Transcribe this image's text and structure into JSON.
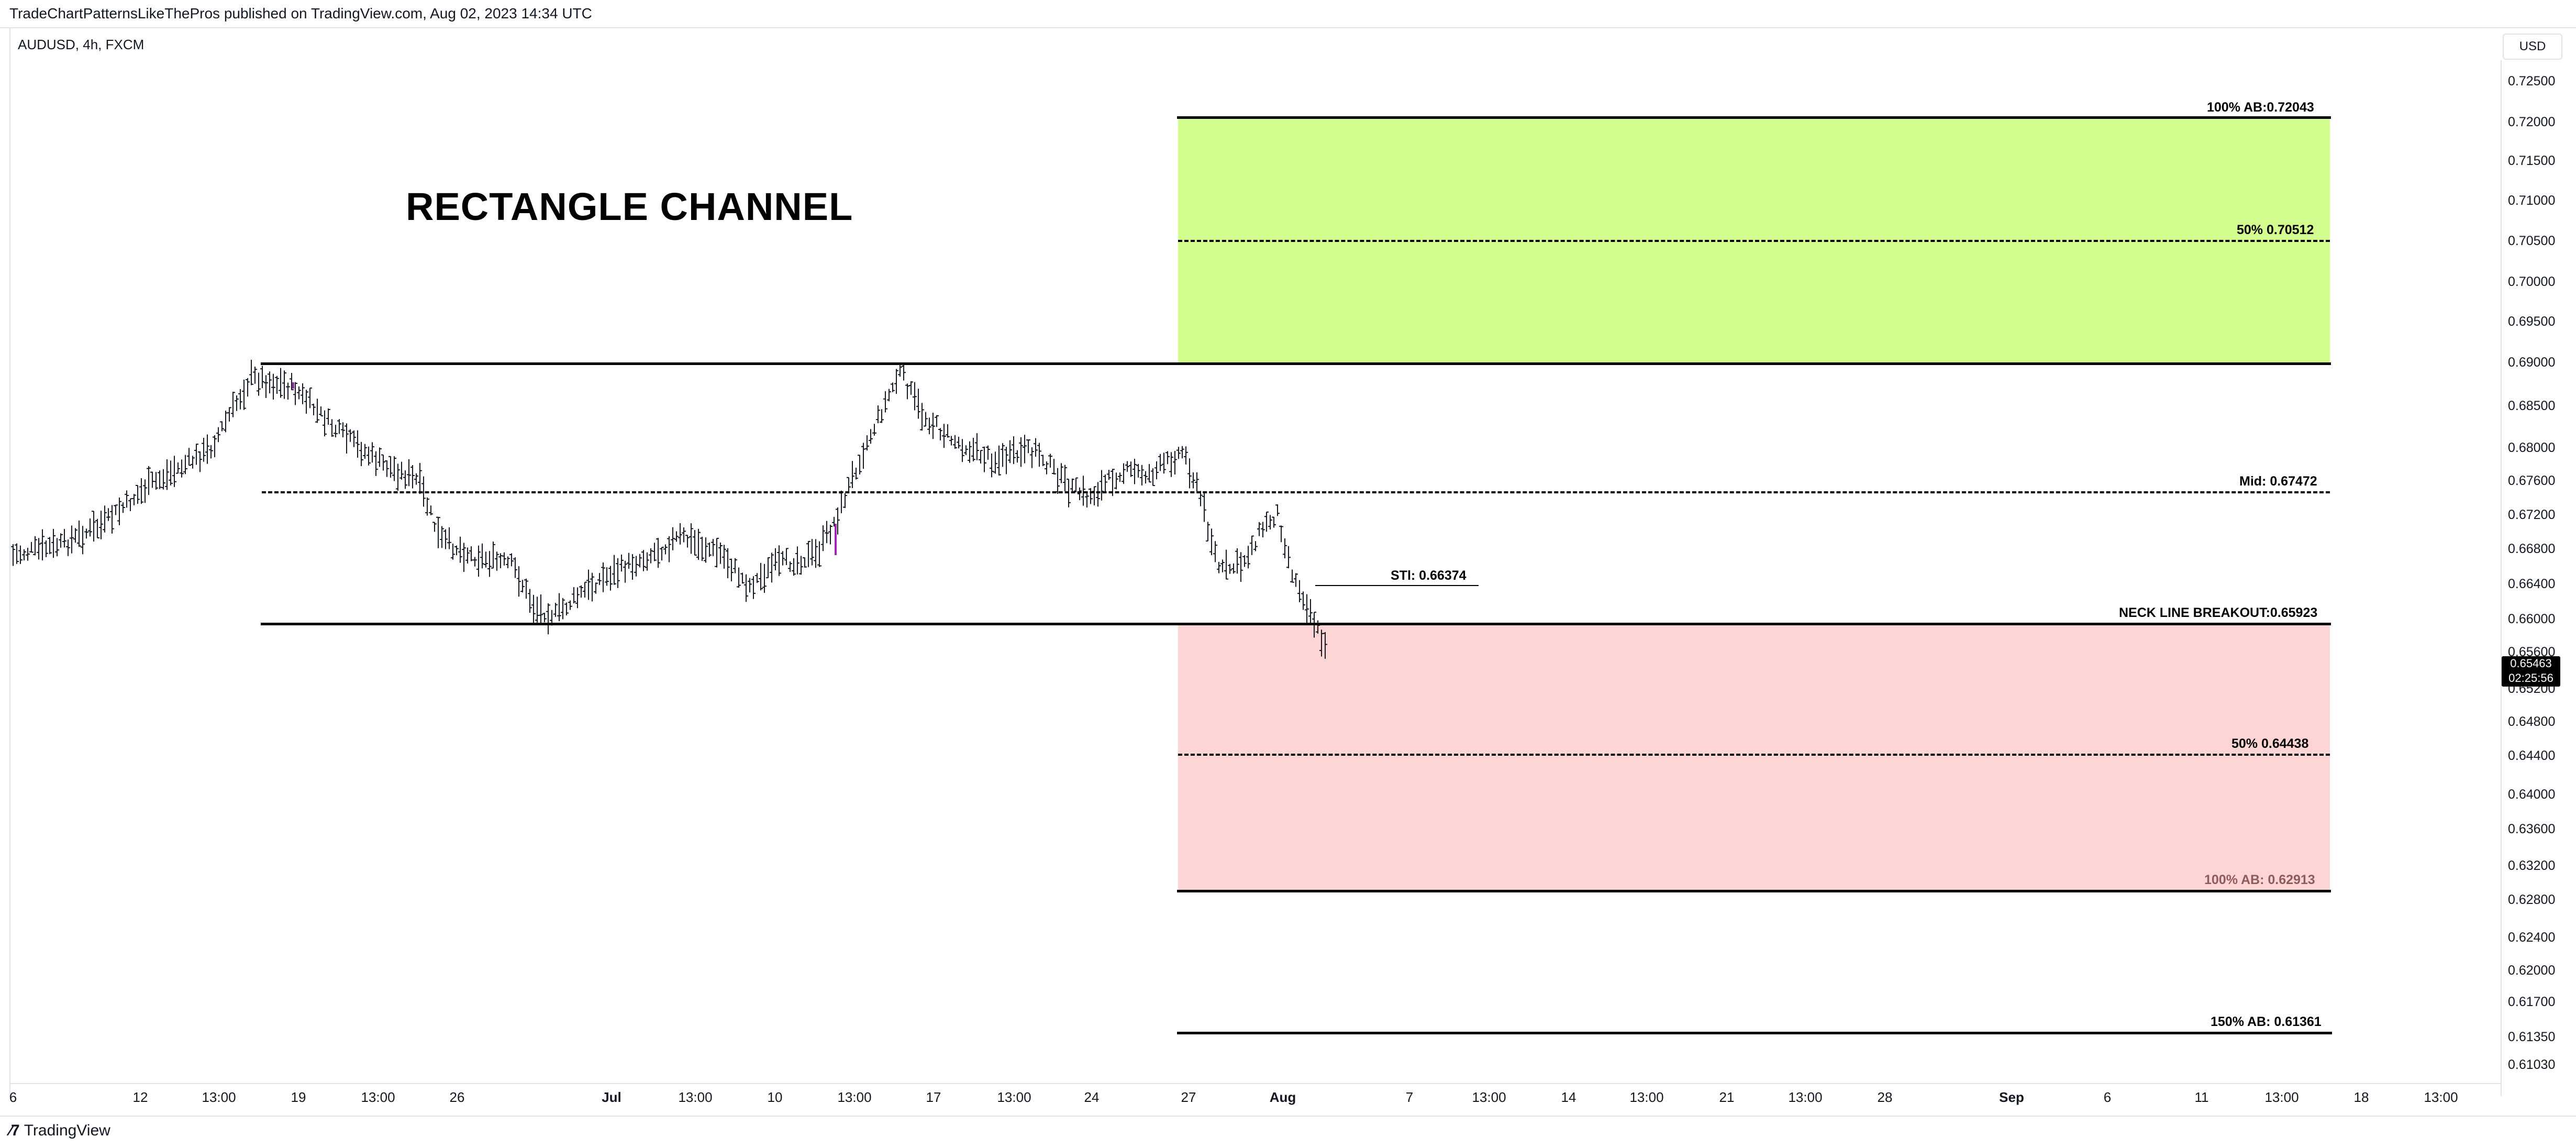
{
  "header": {
    "published": "TradeChartPatternsLikeThePros published on TradingView.com, Aug 02, 2023 14:34 UTC",
    "symbol": "AUDUSD, 4h, FXCM",
    "currency": "USD",
    "brand": "TradingView"
  },
  "chart_title": "RECTANGLE CHANNEL",
  "levels": {
    "target100_label": "100% AB:0.72043",
    "target50_label": "50% 0.70512",
    "mid_label": "Mid: 0.67472",
    "stl_label": "STl: 0.66374",
    "neckline_label": "NECK LINE BREAKOUT:0.65923",
    "down50_label": "50% 0.64438",
    "down100_label": "100% AB: 0.62913",
    "down150_label": "150% AB: 0.61361"
  },
  "price_tag": {
    "price": "0.65463",
    "countdown": "02:25:56"
  },
  "colors": {
    "profit_zone": "#d3fd8f",
    "loss_zone": "#fdd5d5",
    "line": "#000000"
  },
  "y_ticks": [
    "0.72500",
    "0.72000",
    "0.71500",
    "0.71000",
    "0.70500",
    "0.70000",
    "0.69500",
    "0.69000",
    "0.68500",
    "0.68000",
    "0.67600",
    "0.67200",
    "0.66800",
    "0.66400",
    "0.66000",
    "0.65600",
    "0.65200",
    "0.64800",
    "0.64400",
    "0.64000",
    "0.63600",
    "0.63200",
    "0.62800",
    "0.62400",
    "0.62000",
    "0.61700",
    "0.61350",
    "0.61030"
  ],
  "x_ticks": [
    {
      "label": "6",
      "bold": false
    },
    {
      "label": "12",
      "bold": false
    },
    {
      "label": "13:00",
      "bold": false
    },
    {
      "label": "19",
      "bold": false
    },
    {
      "label": "13:00",
      "bold": false
    },
    {
      "label": "26",
      "bold": false
    },
    {
      "label": "Jul",
      "bold": true
    },
    {
      "label": "13:00",
      "bold": false
    },
    {
      "label": "10",
      "bold": false
    },
    {
      "label": "13:00",
      "bold": false
    },
    {
      "label": "17",
      "bold": false
    },
    {
      "label": "13:00",
      "bold": false
    },
    {
      "label": "24",
      "bold": false
    },
    {
      "label": "27",
      "bold": false
    },
    {
      "label": "Aug",
      "bold": true
    },
    {
      "label": "7",
      "bold": false
    },
    {
      "label": "13:00",
      "bold": false
    },
    {
      "label": "14",
      "bold": false
    },
    {
      "label": "13:00",
      "bold": false
    },
    {
      "label": "21",
      "bold": false
    },
    {
      "label": "13:00",
      "bold": false
    },
    {
      "label": "28",
      "bold": false
    },
    {
      "label": "Sep",
      "bold": true
    },
    {
      "label": "6",
      "bold": false
    },
    {
      "label": "11",
      "bold": false
    },
    {
      "label": "13:00",
      "bold": false
    },
    {
      "label": "18",
      "bold": false
    },
    {
      "label": "13:00",
      "bold": false
    }
  ]
}
